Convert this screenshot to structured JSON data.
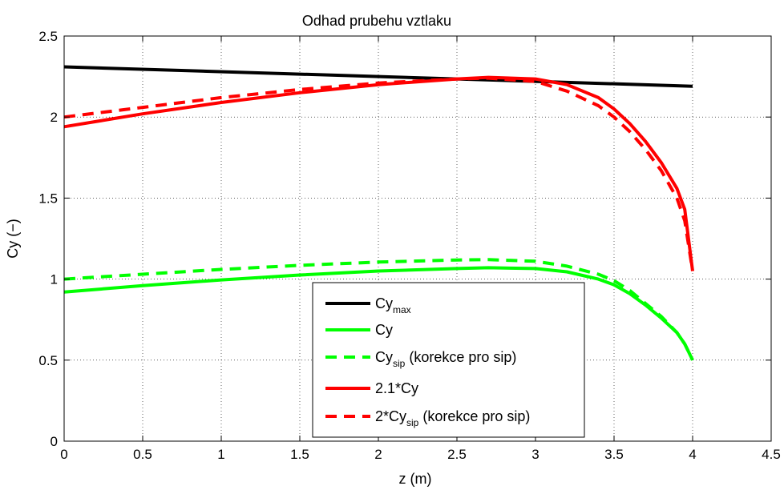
{
  "chart_data": {
    "type": "line",
    "title": "Odhad prubehu vztlaku",
    "xlabel": "z (m)",
    "ylabel": "Cy (−)",
    "xlim": [
      0,
      4.5
    ],
    "ylim": [
      0,
      2.5
    ],
    "xticks": [
      "0",
      "0.5",
      "1",
      "1.5",
      "2",
      "2.5",
      "3",
      "3.5",
      "4",
      "4.5"
    ],
    "yticks": [
      "0",
      "0.5",
      "1",
      "1.5",
      "2",
      "2.5"
    ],
    "grid": "dotted",
    "legend_position": "bottom-center",
    "series": [
      {
        "name": "Cy_max",
        "legend": {
          "main": "Cy",
          "sub": "max",
          "suffix": ""
        },
        "color": "#000000",
        "dash": "solid",
        "x": [
          0,
          4
        ],
        "y": [
          2.31,
          2.19
        ]
      },
      {
        "name": "Cy",
        "legend": {
          "main": "Cy",
          "sub": "",
          "suffix": ""
        },
        "color": "#00ff00",
        "dash": "solid",
        "x": [
          0,
          0.5,
          1,
          1.5,
          2,
          2.5,
          2.7,
          3,
          3.2,
          3.4,
          3.5,
          3.6,
          3.7,
          3.8,
          3.9,
          3.95,
          4
        ],
        "y": [
          0.92,
          0.96,
          0.995,
          1.025,
          1.05,
          1.065,
          1.07,
          1.065,
          1.045,
          1.0,
          0.965,
          0.91,
          0.84,
          0.76,
          0.67,
          0.6,
          0.5
        ]
      },
      {
        "name": "Cy_sip",
        "legend": {
          "main": "Cy",
          "sub": "sip",
          "suffix": " (korekce pro sip)"
        },
        "color": "#00ff00",
        "dash": "dashed",
        "x": [
          0,
          0.5,
          1,
          1.5,
          2,
          2.5,
          2.7,
          3,
          3.2,
          3.4,
          3.5,
          3.6,
          3.7,
          3.8,
          3.9,
          3.95,
          4
        ],
        "y": [
          1.0,
          1.03,
          1.06,
          1.085,
          1.105,
          1.118,
          1.12,
          1.11,
          1.08,
          1.03,
          0.99,
          0.93,
          0.85,
          0.77,
          0.67,
          0.6,
          0.5
        ]
      },
      {
        "name": "2.1*Cy",
        "legend": {
          "main": "2.1*Cy",
          "sub": "",
          "suffix": ""
        },
        "color": "#ff0000",
        "dash": "solid",
        "x": [
          0,
          0.5,
          1,
          1.5,
          2,
          2.5,
          2.7,
          3,
          3.2,
          3.4,
          3.5,
          3.6,
          3.7,
          3.8,
          3.9,
          3.95,
          4
        ],
        "y": [
          1.94,
          2.02,
          2.09,
          2.15,
          2.2,
          2.235,
          2.245,
          2.235,
          2.2,
          2.12,
          2.05,
          1.96,
          1.85,
          1.72,
          1.56,
          1.43,
          1.05
        ]
      },
      {
        "name": "2*Cy_sip",
        "legend": {
          "main": "2*Cy",
          "sub": "sip",
          "suffix": " (korekce pro sip)"
        },
        "color": "#ff0000",
        "dash": "dashed",
        "x": [
          0,
          0.5,
          1,
          1.5,
          2,
          2.5,
          2.7,
          3,
          3.2,
          3.4,
          3.5,
          3.6,
          3.7,
          3.8,
          3.9,
          3.95,
          4
        ],
        "y": [
          2.0,
          2.06,
          2.12,
          2.17,
          2.21,
          2.235,
          2.24,
          2.22,
          2.16,
          2.07,
          2.0,
          1.91,
          1.8,
          1.67,
          1.5,
          1.36,
          1.05
        ]
      }
    ]
  }
}
